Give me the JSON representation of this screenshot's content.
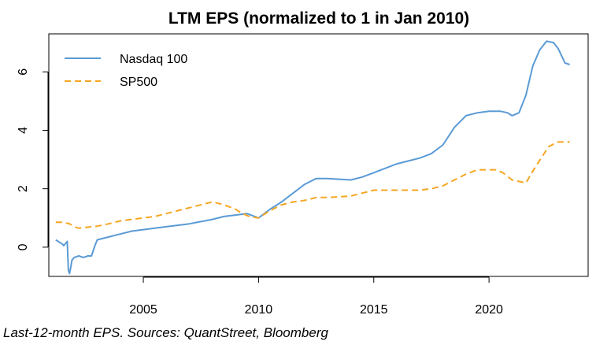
{
  "chart_data": {
    "type": "line",
    "title": "LTM EPS (normalized to 1 in Jan 2010)",
    "xlabel": "",
    "ylabel": "",
    "xlim": [
      2000.9,
      2024.3
    ],
    "ylim": [
      -1.0,
      7.3
    ],
    "x_ticks": [
      2005,
      2010,
      2015,
      2020
    ],
    "y_ticks": [
      0,
      2,
      4,
      6
    ],
    "grid": false,
    "legend_position": "top-left",
    "series": [
      {
        "name": "Nasdaq 100",
        "color": "#5b9bd5",
        "line_style": "solid",
        "x": [
          2001.2,
          2001.5,
          2001.55,
          2001.7,
          2001.75,
          2001.8,
          2001.85,
          2001.9,
          2002.0,
          2002.2,
          2002.4,
          2002.6,
          2002.75,
          2002.9,
          2003.0,
          2003.5,
          2004.0,
          2004.5,
          2005.0,
          2006.0,
          2007.0,
          2008.0,
          2008.5,
          2009.0,
          2009.5,
          2010.0,
          2010.5,
          2011.0,
          2011.5,
          2012.0,
          2012.5,
          2013.0,
          2014.0,
          2014.5,
          2015.0,
          2015.5,
          2016.0,
          2016.5,
          2017.0,
          2017.5,
          2018.0,
          2018.5,
          2019.0,
          2019.5,
          2020.0,
          2020.5,
          2020.8,
          2021.0,
          2021.3,
          2021.6,
          2021.9,
          2022.2,
          2022.5,
          2022.8,
          2023.0,
          2023.3,
          2023.5
        ],
        "y": [
          0.25,
          0.1,
          0.05,
          0.2,
          -0.8,
          -0.9,
          -0.7,
          -0.45,
          -0.35,
          -0.3,
          -0.35,
          -0.3,
          -0.3,
          0.05,
          0.25,
          0.35,
          0.45,
          0.55,
          0.6,
          0.7,
          0.8,
          0.95,
          1.05,
          1.1,
          1.15,
          1.0,
          1.3,
          1.55,
          1.85,
          2.15,
          2.35,
          2.35,
          2.3,
          2.4,
          2.55,
          2.7,
          2.85,
          2.95,
          3.05,
          3.2,
          3.5,
          4.1,
          4.5,
          4.6,
          4.65,
          4.65,
          4.6,
          4.5,
          4.6,
          5.2,
          6.2,
          6.75,
          7.05,
          7.0,
          6.8,
          6.3,
          6.25
        ]
      },
      {
        "name": "SP500",
        "color": "#f5a623",
        "line_style": "dashed",
        "x": [
          2001.2,
          2001.5,
          2001.8,
          2002.0,
          2002.2,
          2002.5,
          2003.0,
          2003.5,
          2004.0,
          2004.5,
          2005.0,
          2005.5,
          2006.0,
          2006.5,
          2007.0,
          2007.5,
          2008.0,
          2008.5,
          2009.0,
          2009.3,
          2009.6,
          2010.0,
          2010.5,
          2011.0,
          2011.5,
          2012.0,
          2012.5,
          2013.0,
          2014.0,
          2014.5,
          2015.0,
          2015.5,
          2016.0,
          2017.0,
          2017.5,
          2018.0,
          2018.5,
          2019.0,
          2019.5,
          2020.0,
          2020.3,
          2020.6,
          2021.0,
          2021.3,
          2021.6,
          2021.9,
          2022.3,
          2022.6,
          2023.0,
          2023.5
        ],
        "y": [
          0.85,
          0.85,
          0.8,
          0.7,
          0.65,
          0.68,
          0.72,
          0.8,
          0.9,
          0.95,
          1.0,
          1.05,
          1.15,
          1.25,
          1.35,
          1.45,
          1.55,
          1.45,
          1.3,
          1.15,
          1.05,
          1.0,
          1.25,
          1.45,
          1.55,
          1.6,
          1.7,
          1.7,
          1.75,
          1.85,
          1.95,
          1.95,
          1.95,
          1.95,
          2.0,
          2.1,
          2.3,
          2.5,
          2.65,
          2.65,
          2.65,
          2.55,
          2.3,
          2.25,
          2.2,
          2.6,
          3.1,
          3.45,
          3.6,
          3.6
        ]
      }
    ]
  },
  "caption": "Last-12-month EPS. Sources: QuantStreet, Bloomberg"
}
